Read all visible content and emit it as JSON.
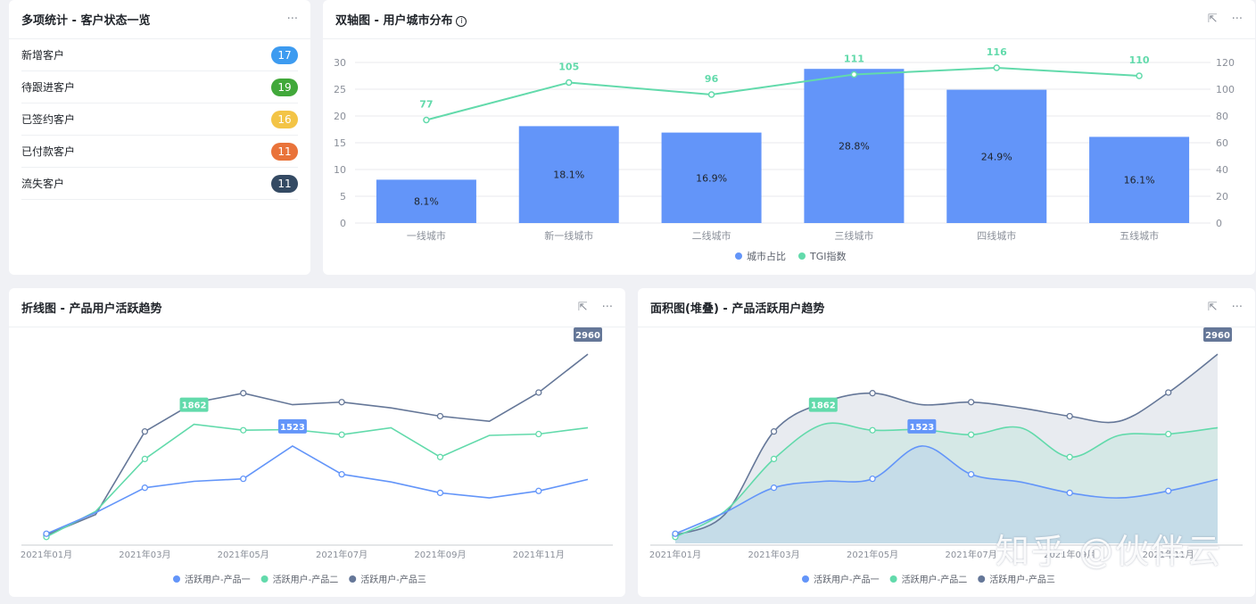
{
  "stats_card": {
    "title": "多项统计 - 客户状态一览",
    "more": "···",
    "items": [
      {
        "label": "新增客户",
        "value": "17",
        "color": "#3d9bf0"
      },
      {
        "label": "待跟进客户",
        "value": "19",
        "color": "#41a83a"
      },
      {
        "label": "已签约客户",
        "value": "16",
        "color": "#f3c446"
      },
      {
        "label": "已付款客户",
        "value": "11",
        "color": "#e9733a"
      },
      {
        "label": "流失客户",
        "value": "11",
        "color": "#344a63"
      }
    ]
  },
  "dual_card": {
    "title": "双轴图 - 用户城市分布",
    "info": "i",
    "share": "⇱",
    "more": "···"
  },
  "line_card": {
    "title": "折线图 - 产品用户活跃趋势",
    "share": "⇱",
    "more": "···"
  },
  "area_card": {
    "title": "面积图(堆叠) - 产品活跃用户趋势",
    "share": "⇱",
    "more": "···"
  },
  "watermark": "知乎 @伙伴云",
  "chart_data": [
    {
      "type": "bar",
      "categories": [
        "一线城市",
        "新一线城市",
        "二线城市",
        "三线城市",
        "四线城市",
        "五线城市"
      ],
      "series": [
        {
          "name": "城市占比",
          "type": "bar",
          "axis": "left",
          "values": [
            8.1,
            18.1,
            16.9,
            28.8,
            24.9,
            16.1
          ],
          "labels": [
            "8.1%",
            "18.1%",
            "16.9%",
            "28.8%",
            "24.9%",
            "16.1%"
          ],
          "color": "#6395f9"
        },
        {
          "name": "TGI指数",
          "type": "line",
          "axis": "right",
          "values": [
            77,
            105,
            96,
            111,
            116,
            110
          ],
          "color": "#62daab"
        }
      ],
      "ylim": [
        0,
        30
      ],
      "yticks": [
        0,
        5,
        10,
        15,
        20,
        25,
        30
      ],
      "y2lim": [
        0,
        120
      ],
      "y2ticks": [
        0,
        20,
        40,
        60,
        80,
        100,
        120
      ],
      "grid": true,
      "legend": "bottom"
    },
    {
      "type": "line",
      "x": [
        "2021-01",
        "2021-02",
        "2021-03",
        "2021-04",
        "2021-05",
        "2021-06",
        "2021-07",
        "2021-08",
        "2021-09",
        "2021-10",
        "2021-11",
        "2021-12"
      ],
      "xtick_labels": [
        "2021年01月",
        "2021年03月",
        "2021年05月",
        "2021年07月",
        "2021年09月",
        "2021年11月"
      ],
      "series": [
        {
          "name": "活跃用户-产品一",
          "color": "#6395f9",
          "values": [
            150,
            480,
            870,
            970,
            1010,
            1523,
            1080,
            960,
            790,
            710,
            820,
            1000
          ]
        },
        {
          "name": "活跃用户-产品二",
          "color": "#62daab",
          "values": [
            100,
            500,
            1320,
            1862,
            1770,
            1780,
            1700,
            1810,
            1350,
            1690,
            1710,
            1810
          ]
        },
        {
          "name": "活跃用户-产品三",
          "color": "#657798",
          "values": [
            130,
            450,
            1750,
            2200,
            2350,
            2170,
            2210,
            2120,
            1990,
            1910,
            2360,
            2960
          ]
        }
      ],
      "tooltips": [
        "1862",
        "1523",
        "2960"
      ],
      "grid": false,
      "legend": "bottom"
    },
    {
      "type": "area",
      "stacked": true,
      "x": [
        "2021-01",
        "2021-02",
        "2021-03",
        "2021-04",
        "2021-05",
        "2021-06",
        "2021-07",
        "2021-08",
        "2021-09",
        "2021-10",
        "2021-11",
        "2021-12"
      ],
      "xtick_labels": [
        "2021年01月",
        "2021年03月",
        "2021年05月",
        "2021年07月",
        "2021年09月",
        "2021年11月"
      ],
      "series": [
        {
          "name": "活跃用户-产品一",
          "color": "#6395f9",
          "values": [
            150,
            480,
            870,
            970,
            1010,
            1523,
            1080,
            960,
            790,
            710,
            820,
            1000
          ]
        },
        {
          "name": "活跃用户-产品二",
          "color": "#62daab",
          "values": [
            100,
            500,
            1320,
            1862,
            1770,
            1780,
            1700,
            1810,
            1350,
            1690,
            1710,
            1810
          ]
        },
        {
          "name": "活跃用户-产品三",
          "color": "#657798",
          "values": [
            130,
            450,
            1750,
            2200,
            2350,
            2170,
            2210,
            2120,
            1990,
            1910,
            2360,
            2960
          ]
        }
      ],
      "tooltips": [
        "1862",
        "1523",
        "2960"
      ],
      "grid": false,
      "legend": "bottom"
    }
  ]
}
